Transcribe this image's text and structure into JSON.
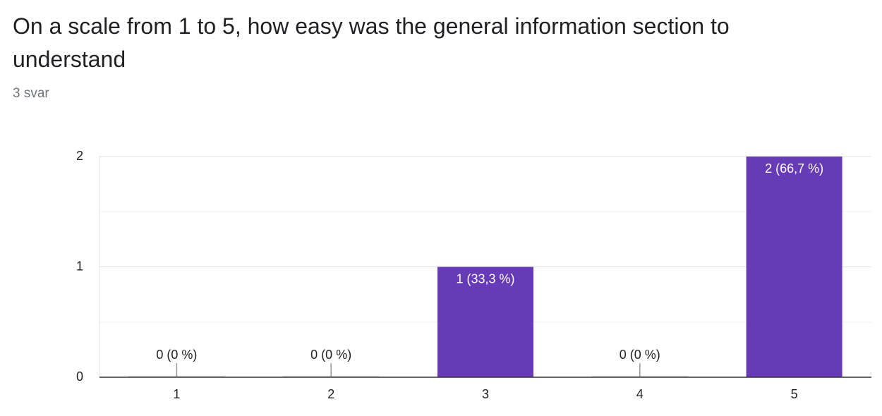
{
  "chart_data": {
    "type": "bar",
    "title": "On a scale from 1 to 5, how easy was the general information section to understand",
    "subtitle": "3 svar",
    "categories": [
      "1",
      "2",
      "3",
      "4",
      "5"
    ],
    "values": [
      0,
      0,
      1,
      0,
      2
    ],
    "value_labels": [
      "0 (0 %)",
      "0 (0 %)",
      "1 (33,3 %)",
      "0 (0 %)",
      "2 (66,7 %)"
    ],
    "color": "#673ab7",
    "ylim": [
      0,
      2
    ],
    "yticks": [
      0,
      1,
      2
    ],
    "minor_yticks": [
      0.5,
      1.5
    ],
    "grid": true
  }
}
